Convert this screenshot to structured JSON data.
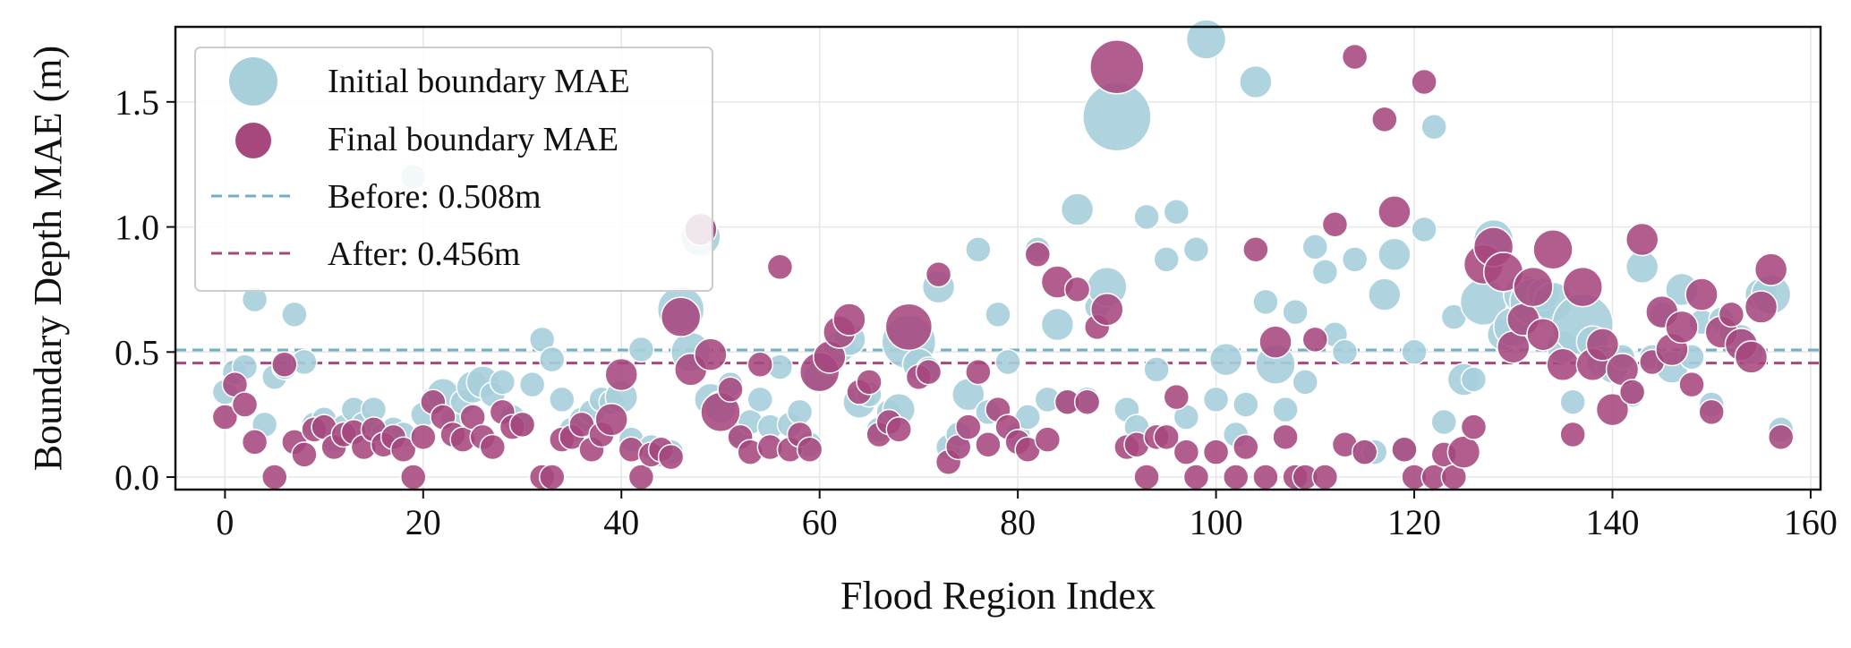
{
  "chart_data": {
    "type": "scatter",
    "title": "",
    "xlabel": "Flood Region Index",
    "ylabel": "Boundary Depth MAE (m)",
    "xlim": [
      -5,
      161
    ],
    "ylim": [
      -0.05,
      1.8
    ],
    "xticks": [
      "0",
      "20",
      "40",
      "60",
      "80",
      "100",
      "120",
      "140",
      "160"
    ],
    "yticks": [
      "0.0",
      "0.5",
      "1.0",
      "1.5"
    ],
    "grid": true,
    "legend_position": "top-left",
    "colors": {
      "initial": "#a7cfdc",
      "final": "#a6477e",
      "before_line": "#6fb0c6",
      "after_line": "#a6477e",
      "marker_edge": "#ffffff"
    },
    "legend": {
      "initial_label": "Initial boundary MAE",
      "final_label": "Final boundary MAE",
      "before_label": "Before: 0.508m",
      "after_label": "After: 0.456m"
    },
    "reference_lines": [
      {
        "name": "before",
        "y": 0.508
      },
      {
        "name": "after",
        "y": 0.456
      }
    ],
    "series": [
      {
        "name": "Initial boundary MAE",
        "x": [
          0,
          1,
          2,
          3,
          4,
          5,
          6,
          7,
          8,
          9,
          10,
          11,
          12,
          13,
          14,
          15,
          16,
          17,
          18,
          19,
          20,
          21,
          22,
          23,
          24,
          25,
          26,
          27,
          28,
          29,
          30,
          31,
          32,
          33,
          34,
          35,
          36,
          37,
          38,
          39,
          40,
          41,
          42,
          43,
          44,
          45,
          46,
          47,
          48,
          49,
          50,
          51,
          52,
          53,
          54,
          55,
          56,
          57,
          58,
          59,
          60,
          61,
          62,
          63,
          64,
          65,
          66,
          67,
          68,
          69,
          70,
          71,
          72,
          73,
          74,
          75,
          76,
          77,
          78,
          79,
          80,
          81,
          82,
          83,
          84,
          85,
          86,
          87,
          88,
          89,
          90,
          91,
          92,
          93,
          94,
          95,
          96,
          97,
          98,
          99,
          100,
          101,
          102,
          103,
          104,
          105,
          106,
          107,
          108,
          109,
          110,
          111,
          112,
          113,
          114,
          115,
          116,
          117,
          118,
          119,
          120,
          121,
          122,
          123,
          124,
          125,
          126,
          127,
          128,
          129,
          130,
          131,
          132,
          133,
          134,
          135,
          136,
          137,
          138,
          139,
          140,
          141,
          142,
          143,
          144,
          145,
          146,
          147,
          148,
          149,
          150,
          151,
          152,
          153,
          154,
          155,
          156,
          157
        ],
        "y": [
          0.34,
          0.42,
          0.44,
          0.71,
          0.21,
          0.4,
          0.44,
          0.65,
          0.46,
          0.21,
          0.23,
          0.15,
          0.2,
          0.27,
          0.21,
          0.27,
          0.17,
          0.19,
          0.17,
          1.2,
          0.25,
          0.31,
          0.33,
          0.23,
          0.3,
          0.36,
          0.38,
          0.33,
          0.38,
          0.24,
          0.21,
          0.37,
          0.55,
          0.47,
          0.31,
          0.19,
          0.23,
          0.26,
          0.31,
          0.3,
          0.32,
          0.15,
          0.51,
          0.12,
          0.09,
          0.1,
          0.67,
          0.5,
          0.96,
          0.31,
          0.28,
          0.37,
          0.17,
          0.22,
          0.31,
          0.2,
          0.44,
          0.21,
          0.26,
          0.13,
          0.4,
          0.47,
          0.52,
          0.55,
          0.3,
          0.33,
          0.19,
          0.26,
          0.27,
          0.54,
          0.45,
          0.43,
          0.76,
          0.12,
          0.17,
          0.33,
          0.91,
          0.26,
          0.65,
          0.46,
          0.17,
          0.24,
          0.91,
          0.31,
          0.61,
          0.3,
          1.07,
          0.31,
          0.68,
          0.76,
          1.44,
          0.27,
          0.2,
          1.04,
          0.43,
          0.87,
          1.06,
          0.24,
          0.91,
          1.75,
          0.31,
          0.47,
          0.17,
          0.29,
          1.58,
          0.7,
          0.45,
          0.27,
          0.66,
          0.38,
          0.92,
          0.82,
          0.57,
          0.5,
          0.87,
          0.1,
          0.1,
          0.73,
          0.89,
          0.11,
          0.5,
          0.99,
          1.4,
          0.22,
          0.64,
          0.39,
          0.39,
          0.7,
          0.95,
          0.57,
          0.6,
          0.73,
          0.7,
          0.73,
          0.7,
          0.52,
          0.3,
          0.61,
          0.54,
          0.46,
          0.44,
          0.48,
          0.33,
          0.84,
          0.48,
          0.65,
          0.44,
          0.75,
          0.48,
          0.62,
          0.29,
          0.63,
          0.58,
          0.56,
          0.5,
          0.73,
          0.73,
          0.19
        ],
        "sizes": [
          2,
          2,
          2,
          2,
          2,
          2,
          2,
          2,
          2,
          2,
          2,
          2,
          2,
          2,
          2,
          2,
          2,
          2,
          2,
          2,
          2,
          2,
          3,
          2,
          2,
          3,
          3,
          2,
          2,
          2,
          2,
          2,
          2,
          2,
          2,
          2,
          2,
          2,
          2,
          2,
          3,
          2,
          2,
          2,
          2,
          2,
          5,
          4,
          4,
          3,
          3,
          2,
          2,
          2,
          2,
          2,
          2,
          2,
          2,
          2,
          3,
          3,
          3,
          3,
          3,
          2,
          2,
          2,
          3,
          6,
          3,
          2,
          3,
          2,
          2,
          3,
          2,
          2,
          2,
          2,
          2,
          2,
          2,
          2,
          3,
          2,
          3,
          2,
          2,
          4,
          8,
          2,
          2,
          2,
          2,
          2,
          2,
          2,
          2,
          4,
          2,
          3,
          2,
          2,
          3,
          2,
          4,
          2,
          2,
          2,
          2,
          2,
          2,
          2,
          2,
          2,
          2,
          3,
          3,
          2,
          2,
          2,
          2,
          2,
          2,
          3,
          2,
          5,
          4,
          3,
          4,
          4,
          5,
          3,
          4,
          3,
          2,
          7,
          3,
          3,
          3,
          2,
          2,
          3,
          2,
          2,
          3,
          3,
          2,
          2,
          2,
          2,
          2,
          2,
          2,
          3,
          4,
          2
        ]
      },
      {
        "name": "Final boundary MAE",
        "x": [
          0,
          1,
          2,
          3,
          5,
          6,
          7,
          8,
          9,
          10,
          11,
          12,
          13,
          14,
          15,
          16,
          17,
          18,
          19,
          20,
          21,
          22,
          23,
          24,
          25,
          26,
          27,
          28,
          29,
          30,
          32,
          33,
          34,
          35,
          36,
          37,
          38,
          39,
          40,
          41,
          42,
          43,
          44,
          45,
          46,
          47,
          48,
          49,
          50,
          51,
          52,
          53,
          54,
          55,
          56,
          57,
          58,
          59,
          60,
          61,
          62,
          63,
          64,
          65,
          66,
          67,
          68,
          69,
          70,
          71,
          72,
          73,
          74,
          75,
          76,
          77,
          78,
          79,
          80,
          81,
          82,
          83,
          84,
          85,
          86,
          87,
          88,
          89,
          90,
          91,
          92,
          93,
          94,
          95,
          96,
          97,
          98,
          100,
          102,
          103,
          104,
          105,
          106,
          107,
          108,
          109,
          110,
          111,
          112,
          113,
          114,
          115,
          117,
          118,
          119,
          120,
          121,
          122,
          123,
          124,
          125,
          126,
          127,
          128,
          129,
          130,
          131,
          132,
          133,
          134,
          135,
          136,
          137,
          138,
          139,
          140,
          141,
          142,
          143,
          144,
          145,
          146,
          147,
          148,
          149,
          150,
          151,
          152,
          153,
          154,
          155,
          156,
          157
        ],
        "y": [
          0.24,
          0.37,
          0.29,
          0.14,
          0.0,
          0.45,
          0.14,
          0.09,
          0.19,
          0.2,
          0.12,
          0.17,
          0.18,
          0.12,
          0.19,
          0.13,
          0.16,
          0.11,
          0.0,
          0.16,
          0.3,
          0.24,
          0.17,
          0.15,
          0.24,
          0.16,
          0.12,
          0.26,
          0.2,
          0.21,
          0.0,
          0.0,
          0.15,
          0.16,
          0.21,
          0.11,
          0.17,
          0.23,
          0.41,
          0.11,
          0.0,
          0.09,
          0.11,
          0.08,
          0.64,
          0.43,
          0.99,
          0.49,
          0.26,
          0.35,
          0.16,
          0.1,
          0.45,
          0.12,
          0.84,
          0.11,
          0.17,
          0.11,
          0.42,
          0.48,
          0.58,
          0.63,
          0.34,
          0.38,
          0.17,
          0.22,
          0.19,
          0.6,
          0.4,
          0.42,
          0.81,
          0.06,
          0.12,
          0.2,
          0.42,
          0.13,
          0.27,
          0.2,
          0.14,
          0.11,
          0.89,
          0.15,
          0.78,
          0.3,
          0.75,
          0.3,
          0.6,
          0.67,
          1.64,
          0.12,
          0.13,
          0.0,
          0.16,
          0.16,
          0.32,
          0.1,
          0.0,
          0.1,
          0.0,
          0.12,
          0.91,
          0.0,
          0.54,
          0.16,
          0.0,
          0.0,
          0.55,
          0.0,
          1.01,
          0.13,
          1.68,
          0.1,
          1.43,
          1.06,
          0.11,
          0.0,
          1.58,
          0.0,
          0.09,
          0.0,
          0.1,
          0.2,
          0.85,
          0.92,
          0.82,
          0.52,
          0.63,
          0.76,
          0.57,
          0.91,
          0.45,
          0.17,
          0.76,
          0.45,
          0.53,
          0.27,
          0.43,
          0.34,
          0.95,
          0.46,
          0.66,
          0.51,
          0.6,
          0.37,
          0.73,
          0.26,
          0.58,
          0.65,
          0.53,
          0.48,
          0.68,
          0.83,
          0.16
        ],
        "sizes": [
          2,
          2,
          2,
          2,
          2,
          2,
          2,
          2,
          2,
          2,
          2,
          2,
          2,
          2,
          2,
          2,
          2,
          2,
          2,
          2,
          2,
          2,
          2,
          2,
          2,
          2,
          2,
          2,
          2,
          2,
          2,
          2,
          2,
          2,
          2,
          2,
          2,
          3,
          3,
          2,
          2,
          2,
          2,
          2,
          4,
          3,
          3,
          3,
          4,
          2,
          2,
          2,
          2,
          2,
          2,
          2,
          2,
          2,
          4,
          3,
          3,
          3,
          2,
          2,
          2,
          2,
          2,
          5,
          2,
          2,
          2,
          2,
          2,
          2,
          2,
          2,
          2,
          2,
          2,
          2,
          2,
          2,
          3,
          2,
          2,
          2,
          2,
          3,
          6,
          2,
          2,
          2,
          2,
          2,
          2,
          2,
          2,
          2,
          2,
          2,
          2,
          2,
          3,
          2,
          2,
          2,
          2,
          2,
          2,
          2,
          2,
          2,
          2,
          3,
          2,
          2,
          2,
          2,
          2,
          2,
          3,
          2,
          4,
          4,
          4,
          3,
          3,
          4,
          3,
          4,
          3,
          2,
          4,
          3,
          3,
          3,
          3,
          2,
          3,
          2,
          3,
          3,
          3,
          2,
          3,
          2,
          3,
          2,
          3,
          3,
          3,
          3,
          2
        ]
      }
    ]
  }
}
